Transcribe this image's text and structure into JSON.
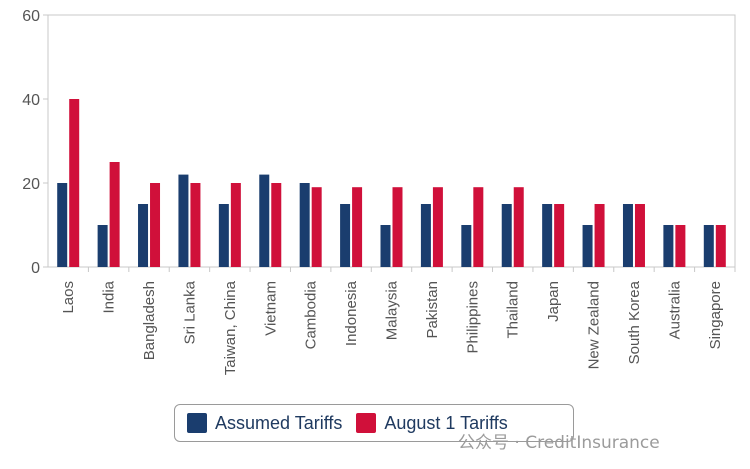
{
  "chart_data": {
    "type": "bar",
    "categories": [
      "Laos",
      "India",
      "Bangladesh",
      "Sri Lanka",
      "Taiwan, China",
      "Vietnam",
      "Cambodia",
      "Indonesia",
      "Malaysia",
      "Pakistan",
      "Philippines",
      "Thailand",
      "Japan",
      "New Zealand",
      "South Korea",
      "Australia",
      "Singapore"
    ],
    "series": [
      {
        "name": "Assumed Tariffs",
        "color": "#1a3d6e",
        "values": [
          20,
          10,
          15,
          22,
          15,
          22,
          20,
          15,
          10,
          15,
          10,
          15,
          15,
          10,
          15,
          10,
          10
        ]
      },
      {
        "name": "August 1 Tariffs",
        "color": "#d0103a",
        "values": [
          40,
          25,
          20,
          20,
          20,
          20,
          19,
          19,
          19,
          19,
          19,
          19,
          15,
          15,
          15,
          10,
          10
        ]
      }
    ],
    "yticks": [
      0,
      20,
      40,
      60
    ],
    "ylim": [
      0,
      60
    ],
    "grid": false,
    "legend_position": "bottom"
  },
  "legend": {
    "items": [
      {
        "label": "Assumed Tariffs",
        "color": "#1a3d6e"
      },
      {
        "label": "August 1 Tariffs",
        "color": "#d0103a"
      }
    ]
  },
  "watermark": "公众号 · CreditInsurance"
}
